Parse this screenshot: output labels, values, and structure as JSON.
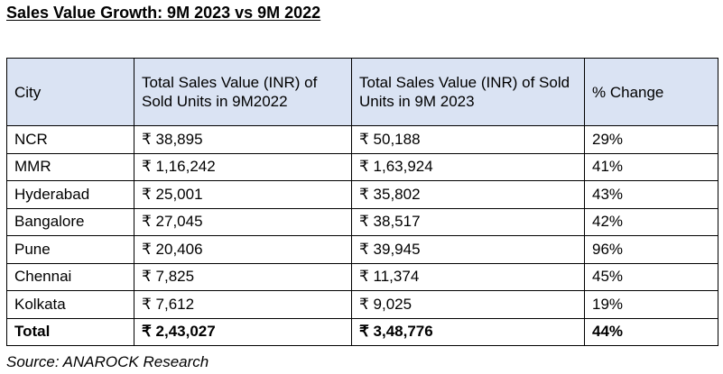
{
  "title": "Sales Value Growth: 9M 2023 vs 9M 2022",
  "table": {
    "headers": [
      "City",
      "Total Sales Value (INR) of Sold Units in 9M2022",
      "Total Sales Value (INR) of Sold Units in 9M 2023",
      "% Change"
    ],
    "rows": [
      [
        "NCR",
        "₹ 38,895",
        "₹ 50,188",
        "29%"
      ],
      [
        "MMR",
        "₹ 1,16,242",
        "₹ 1,63,924",
        "41%"
      ],
      [
        "Hyderabad",
        "₹ 25,001",
        "₹ 35,802",
        "43%"
      ],
      [
        "Bangalore",
        "₹ 27,045",
        "₹ 38,517",
        "42%"
      ],
      [
        "Pune",
        "₹ 20,406",
        "₹ 39,945",
        "96%"
      ],
      [
        "Chennai",
        "₹ 7,825",
        "₹ 11,374",
        "45%"
      ],
      [
        "Kolkata",
        "₹ 7,612",
        "₹ 9,025",
        "19%"
      ]
    ],
    "total": [
      "Total",
      "₹ 2,43,027",
      "₹ 3,48,776",
      "44%"
    ]
  },
  "source": "Source: ANAROCK Research",
  "colors": {
    "header_background": "#dae3f3",
    "border": "#000000",
    "text": "#000000"
  }
}
